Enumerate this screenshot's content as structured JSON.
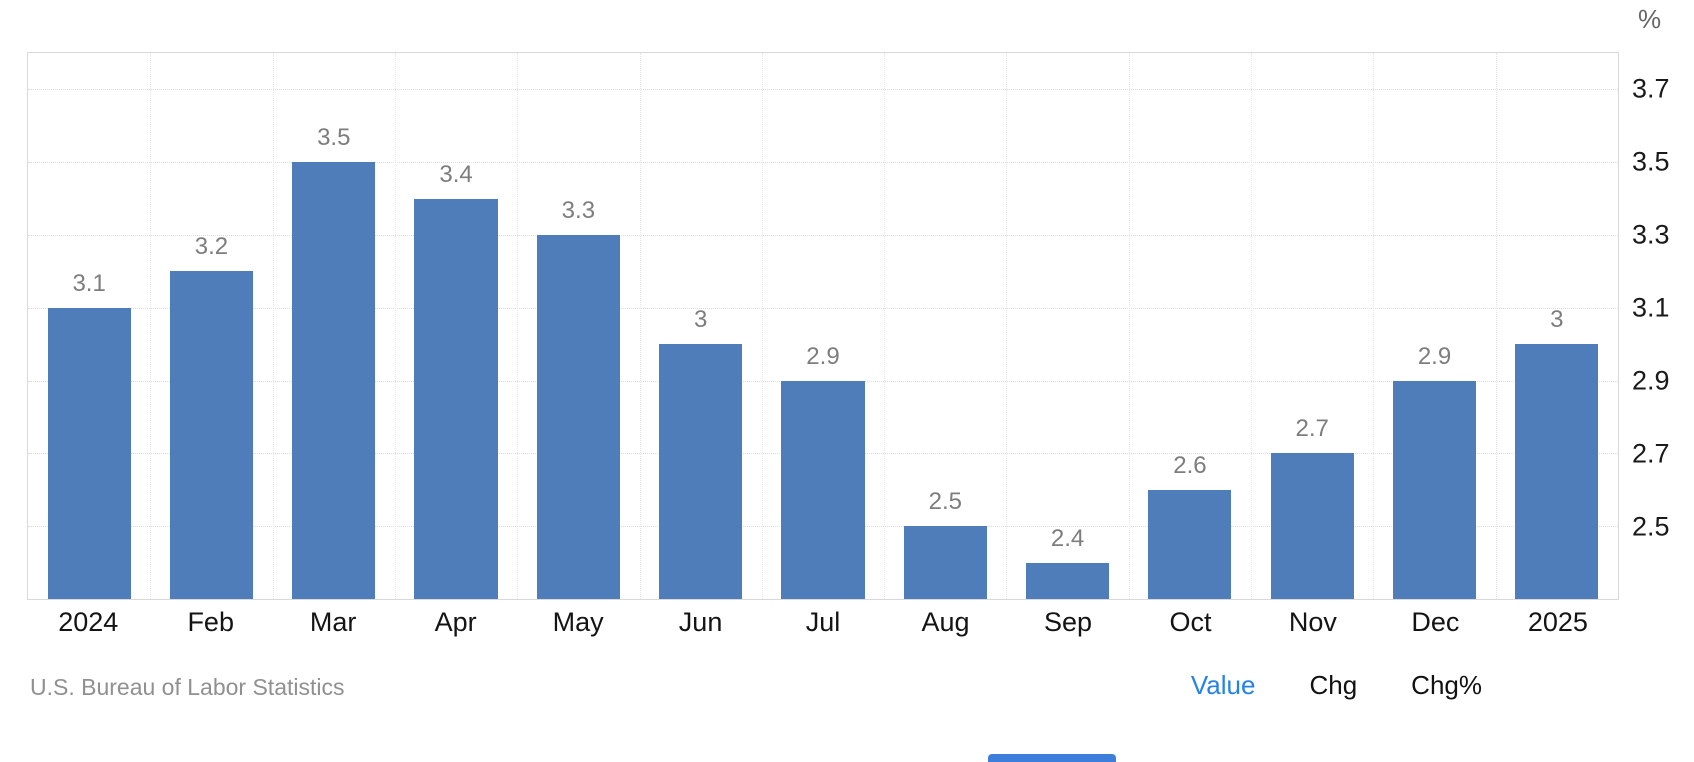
{
  "chart_data": {
    "type": "bar",
    "categories": [
      "2024",
      "Feb",
      "Mar",
      "Apr",
      "May",
      "Jun",
      "Jul",
      "Aug",
      "Sep",
      "Oct",
      "Nov",
      "Dec",
      "2025"
    ],
    "values": [
      3.1,
      3.2,
      3.5,
      3.4,
      3.3,
      3,
      2.9,
      2.5,
      2.4,
      2.6,
      2.7,
      2.9,
      3
    ],
    "value_labels": [
      "3.1",
      "3.2",
      "3.5",
      "3.4",
      "3.3",
      "3",
      "2.9",
      "2.5",
      "2.4",
      "2.6",
      "2.7",
      "2.9",
      "3"
    ],
    "title": "",
    "xlabel": "",
    "ylabel": "%",
    "ylim": [
      2.3,
      3.8
    ],
    "yticks": [
      3.7,
      3.5,
      3.3,
      3.1,
      2.9,
      2.7,
      2.5
    ],
    "grid": true,
    "legend": "none",
    "bar_color": "#4e7db9"
  },
  "axis": {
    "unit_label": "%"
  },
  "footer": {
    "attribution": "U.S. Bureau of Labor Statistics",
    "modes": [
      {
        "label": "Value",
        "active": true
      },
      {
        "label": "Chg",
        "active": false
      },
      {
        "label": "Chg%",
        "active": false
      }
    ]
  },
  "colors": {
    "bar": "#4e7db9",
    "active_mode": "#2582e6",
    "inactive_mode": "#111111",
    "value_label": "#7d7d7d",
    "attribution": "#909090",
    "cutoff_element": "#3d7edb"
  }
}
